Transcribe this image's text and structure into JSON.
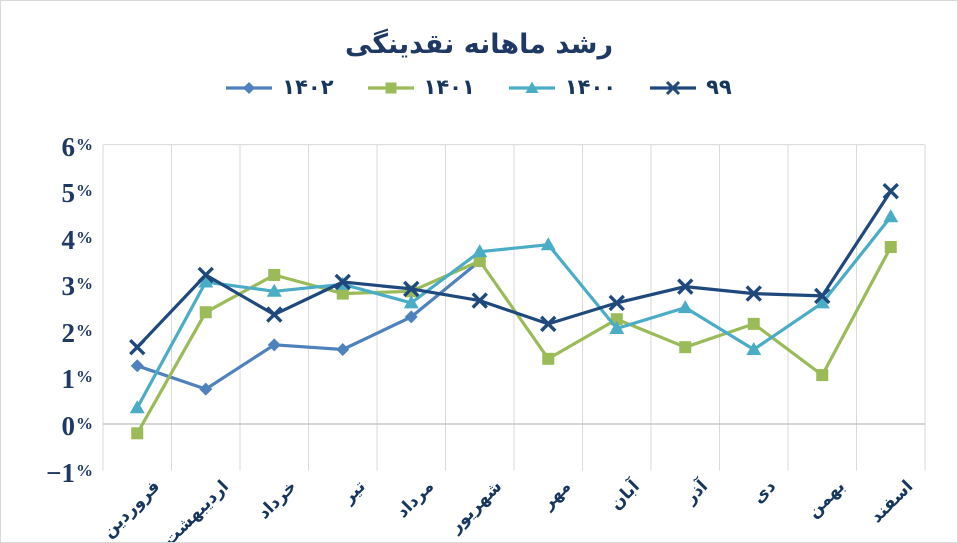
{
  "chart_data": {
    "type": "line",
    "title": "رشد ماهانه نقدینگی",
    "categories": [
      "فروردین",
      "اردیبهشت",
      "خرداد",
      "تیر",
      "مرداد",
      "شهریور",
      "مهر",
      "آبان",
      "آذر",
      "دی",
      "بهمن",
      "اسفند"
    ],
    "series": [
      {
        "name": "۱۴۰۲",
        "marker": "diamond",
        "color": "#4f81bd",
        "values": [
          1.25,
          0.75,
          1.7,
          1.6,
          2.3,
          3.5,
          null,
          null,
          null,
          null,
          null,
          null
        ]
      },
      {
        "name": "۱۴۰۱",
        "marker": "square",
        "color": "#9bbb59",
        "values": [
          -0.2,
          2.4,
          3.2,
          2.8,
          2.85,
          3.5,
          1.4,
          2.25,
          1.65,
          2.15,
          1.05,
          3.8
        ]
      },
      {
        "name": "۱۴۰۰",
        "marker": "triangle",
        "color": "#4bacc6",
        "values": [
          0.35,
          3.05,
          2.85,
          3.0,
          2.6,
          3.7,
          3.85,
          2.05,
          2.5,
          1.6,
          2.6,
          4.45
        ]
      },
      {
        "name": "۹۹",
        "marker": "x",
        "color": "#1f497d",
        "values": [
          1.65,
          3.2,
          2.35,
          3.05,
          2.9,
          2.65,
          2.15,
          2.6,
          2.95,
          2.8,
          2.75,
          5.0
        ]
      }
    ],
    "ylim": [
      -1,
      6
    ],
    "ytick_step": 1,
    "ytick_labels": [
      "6%",
      "5%",
      "4%",
      "3%",
      "2%",
      "1%",
      "0%",
      "−1%"
    ],
    "ytick_values": [
      6,
      5,
      4,
      3,
      2,
      1,
      0,
      -1
    ],
    "grid": "vertical",
    "legend_position": "top",
    "text_direction": "rtl",
    "colors": {
      "title_text": "#1f3864",
      "axis_text": "#17365d",
      "gridline": "#d9d9d9",
      "zero_line": "#bfbfbf",
      "background": "#ffffff"
    }
  }
}
